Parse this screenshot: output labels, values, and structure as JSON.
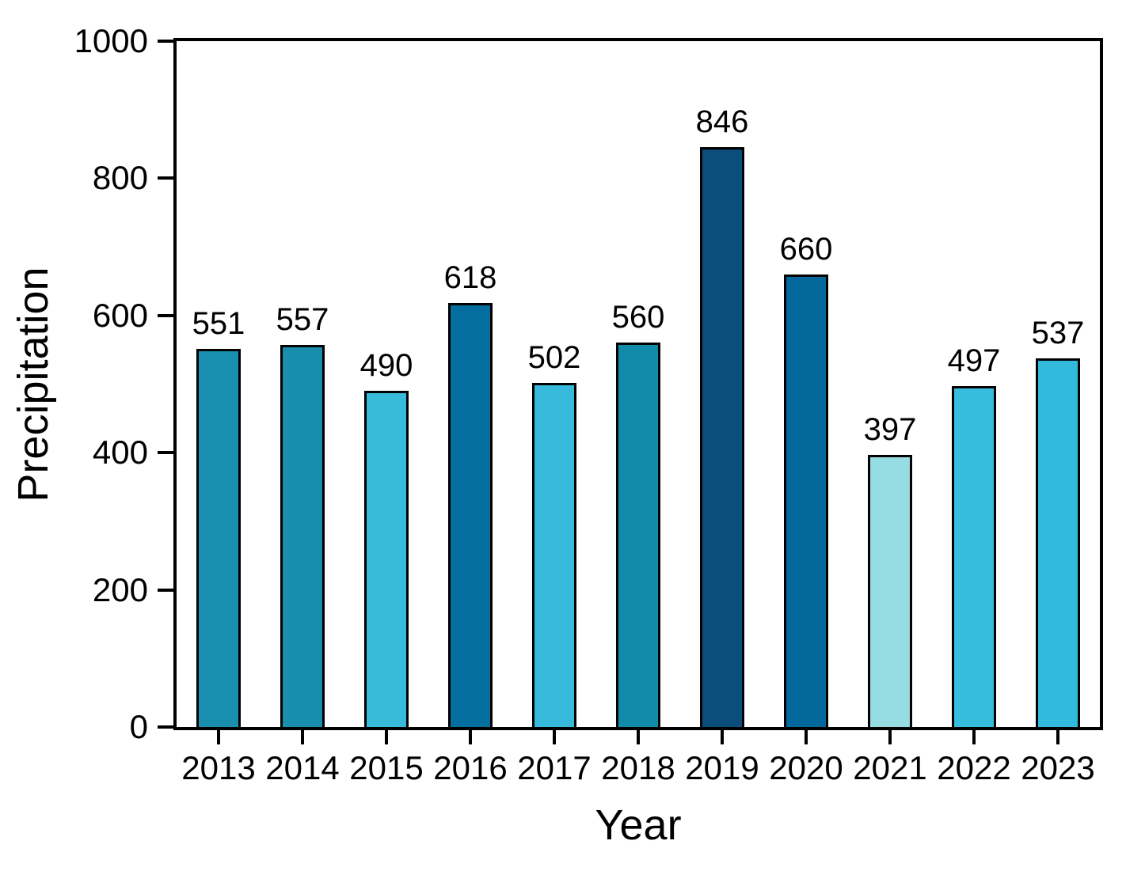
{
  "chart_data": {
    "type": "bar",
    "title": "",
    "xlabel": "Year",
    "ylabel": "Precipitation",
    "categories": [
      "2013",
      "2014",
      "2015",
      "2016",
      "2017",
      "2018",
      "2019",
      "2020",
      "2021",
      "2022",
      "2023"
    ],
    "values": [
      551,
      557,
      490,
      618,
      502,
      560,
      846,
      660,
      397,
      497,
      537
    ],
    "value_labels_shown": true,
    "bar_colors": [
      "#1A8EAF",
      "#188DAE",
      "#38BBDB",
      "#046F9E",
      "#36B9DA",
      "#128BAB",
      "#0B4D7B",
      "#03689B",
      "#95DCE3",
      "#36BCDC",
      "#31BADB"
    ],
    "bar_edge_color": "#000000",
    "axis_color": "#000000",
    "background_color": "#FFFFFF",
    "ylim": [
      0,
      1000
    ],
    "yticks": [
      0,
      200,
      400,
      600,
      800,
      1000
    ],
    "grid": "off",
    "legend": "none"
  }
}
